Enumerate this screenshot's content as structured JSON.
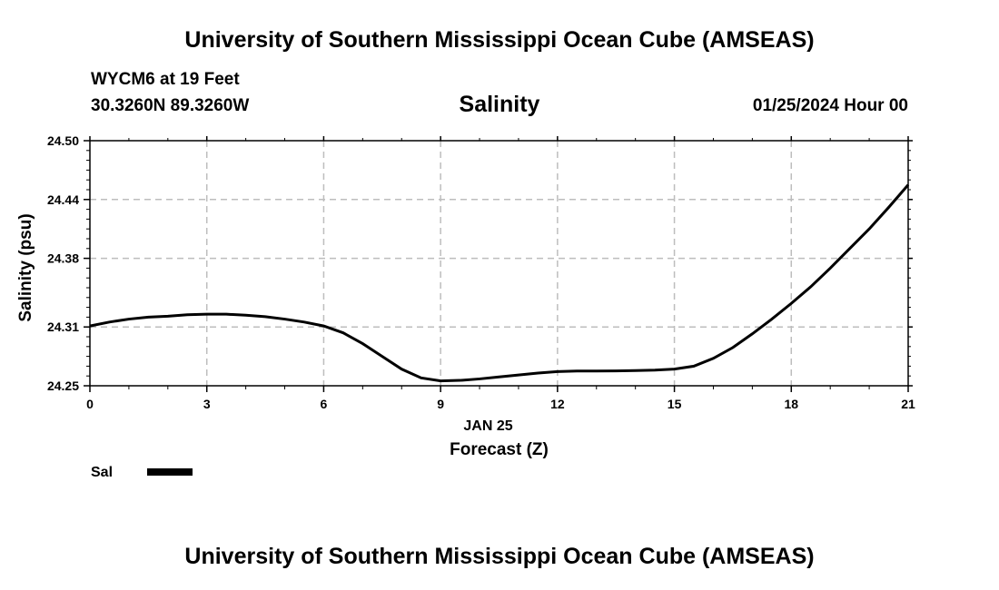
{
  "header": {
    "title": "University of Southern Mississippi Ocean Cube (AMSEAS)",
    "station": "WYCM6 at 19 Feet",
    "coords": "30.3260N  89.3260W",
    "datetime": "01/25/2024 Hour 00"
  },
  "footer": {
    "title": "University of Southern Mississippi Ocean Cube (AMSEAS)"
  },
  "chart_data": {
    "type": "line",
    "title": "Salinity",
    "xlabel": "Forecast (Z)",
    "xsublabel": "JAN 25",
    "ylabel": "Salinity (psu)",
    "xlim": [
      0,
      21
    ],
    "ylim": [
      24.25,
      24.5
    ],
    "xticks": [
      0,
      3,
      6,
      9,
      12,
      15,
      18,
      21
    ],
    "yticks": [
      24.25,
      24.31,
      24.38,
      24.44,
      24.5
    ],
    "ytick_labels": [
      "24.25",
      "24.31",
      "24.38",
      "24.44",
      "24.50"
    ],
    "grid": true,
    "legend": {
      "position": "bottom-left",
      "entries": [
        {
          "label": "Sal",
          "color": "#000000"
        }
      ]
    },
    "series": [
      {
        "name": "Sal",
        "color": "#000000",
        "x": [
          0,
          0.5,
          1,
          1.5,
          2,
          2.5,
          3,
          3.5,
          4,
          4.5,
          5,
          5.5,
          6,
          6.5,
          7,
          7.5,
          8,
          8.5,
          9,
          9.5,
          10,
          10.5,
          11,
          11.5,
          12,
          12.5,
          13,
          13.5,
          14,
          14.5,
          15,
          15.5,
          16,
          16.5,
          17,
          17.5,
          18,
          18.5,
          19,
          19.5,
          20,
          20.5,
          21
        ],
        "values": [
          24.311,
          24.315,
          24.318,
          24.32,
          24.321,
          24.3225,
          24.323,
          24.323,
          24.322,
          24.3205,
          24.318,
          24.315,
          24.311,
          24.304,
          24.293,
          24.28,
          24.267,
          24.258,
          24.255,
          24.2555,
          24.257,
          24.259,
          24.261,
          24.263,
          24.2645,
          24.265,
          24.265,
          24.2652,
          24.2655,
          24.266,
          24.267,
          24.27,
          24.278,
          24.289,
          24.303,
          24.318,
          24.334,
          24.351,
          24.37,
          24.39,
          24.41,
          24.432,
          24.455
        ]
      }
    ]
  }
}
